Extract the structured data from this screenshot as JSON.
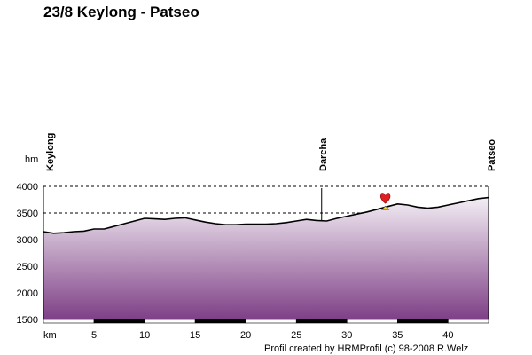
{
  "title": "23/8 Keylong - Patseo",
  "credit": "Profil created by HRMProfil (c) 98-2008 R.Welz",
  "chart_data": {
    "type": "area",
    "title": "23/8 Keylong - Patseo",
    "xlabel": "km",
    "ylabel": "hm",
    "xlim": [
      0,
      44
    ],
    "ylim": [
      1500,
      4000
    ],
    "x_ticks": [
      5,
      10,
      15,
      20,
      25,
      30,
      35,
      40
    ],
    "y_ticks": [
      1500,
      2000,
      2500,
      3000,
      3500,
      4000
    ],
    "grid": "horizontal dashed",
    "colors": {
      "fill_top": "#f3eef4",
      "fill_bottom": "#7e3f86",
      "line": "#000000",
      "marker": "#e02020"
    },
    "places": [
      {
        "name": "Keylong",
        "km": 0
      },
      {
        "name": "Darcha",
        "km": 27.5
      },
      {
        "name": "Patseo",
        "km": 44
      }
    ],
    "marker": {
      "km": 33.8,
      "elevation": 3780,
      "icon": "heart-icon"
    },
    "profile": {
      "km": [
        0,
        1,
        2,
        3,
        4,
        5,
        6,
        7,
        8,
        9,
        10,
        11,
        12,
        13,
        14,
        15,
        16,
        17,
        18,
        19,
        20,
        21,
        22,
        23,
        24,
        25,
        26,
        27,
        28,
        29,
        30,
        31,
        32,
        33,
        34,
        35,
        36,
        37,
        38,
        39,
        40,
        41,
        42,
        43,
        44
      ],
      "elevation": [
        3150,
        3120,
        3130,
        3150,
        3160,
        3200,
        3200,
        3250,
        3300,
        3350,
        3400,
        3390,
        3380,
        3400,
        3410,
        3370,
        3330,
        3300,
        3280,
        3280,
        3290,
        3290,
        3290,
        3300,
        3320,
        3350,
        3380,
        3360,
        3350,
        3400,
        3440,
        3480,
        3520,
        3570,
        3620,
        3670,
        3650,
        3610,
        3590,
        3610,
        3650,
        3690,
        3730,
        3770,
        3790
      ]
    }
  }
}
